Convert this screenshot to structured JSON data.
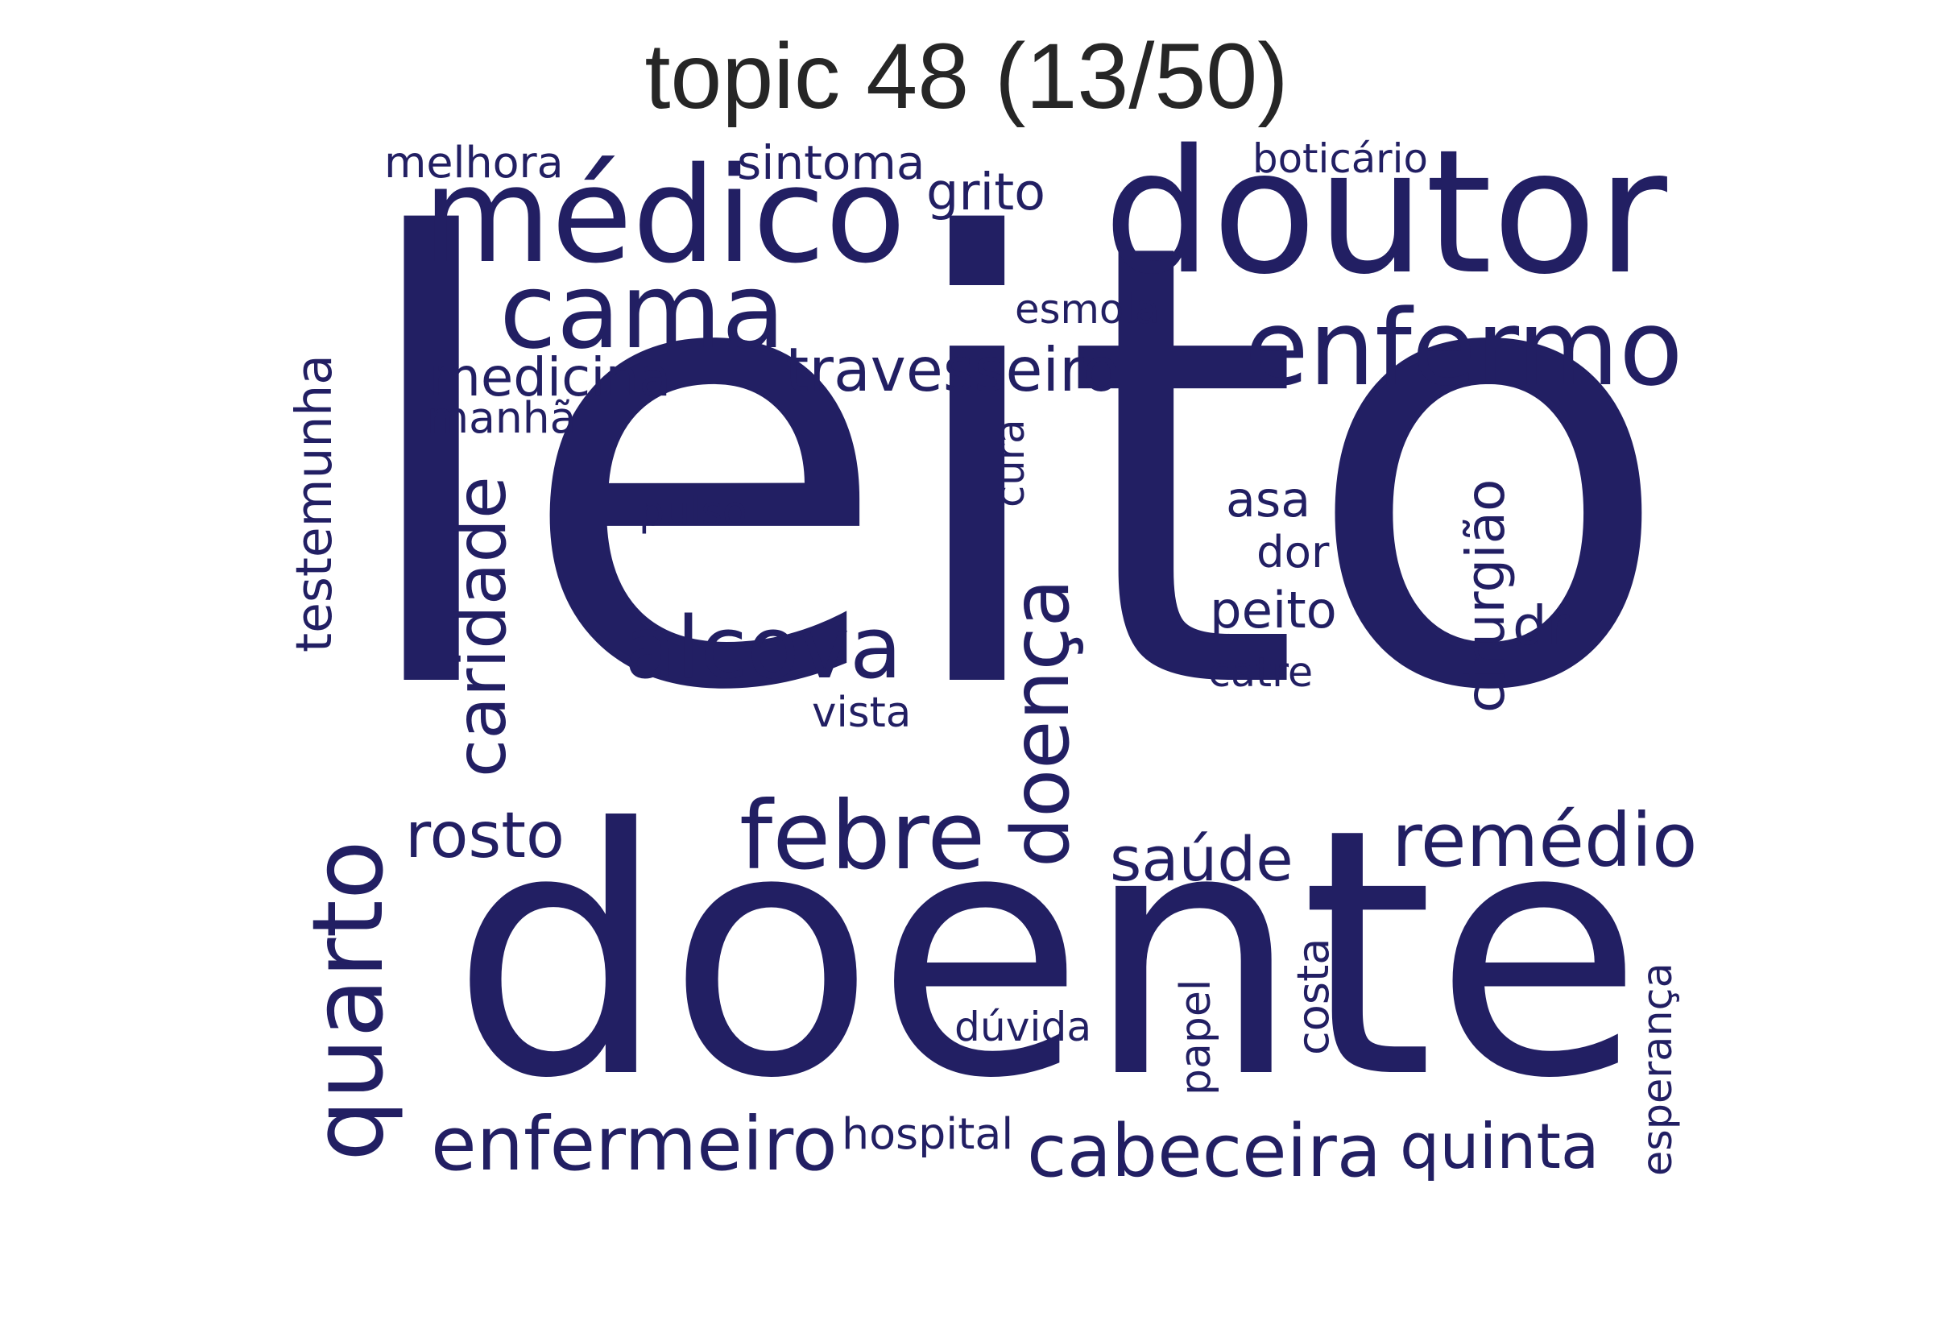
{
  "title": "topic 48 (13/50)",
  "color": "#221f63",
  "words": [
    "leito",
    "doente",
    "doutor",
    "médico",
    "cama",
    "enfermo",
    "quarto",
    "febre",
    "doença",
    "caridade",
    "alcova",
    "enfermeiro",
    "cabeceira",
    "remédio",
    "quinta",
    "travesseiro",
    "rosto",
    "saúde",
    "medicina",
    "testemunha",
    "cirurgião",
    "grito",
    "sintoma",
    "melhora",
    "boticário",
    "esmola",
    "manhã",
    "cura",
    "pulso",
    "asa",
    "dor",
    "peito",
    "dr",
    "catre",
    "vista",
    "dúvida",
    "papel",
    "costa",
    "esperança",
    "hospital"
  ]
}
